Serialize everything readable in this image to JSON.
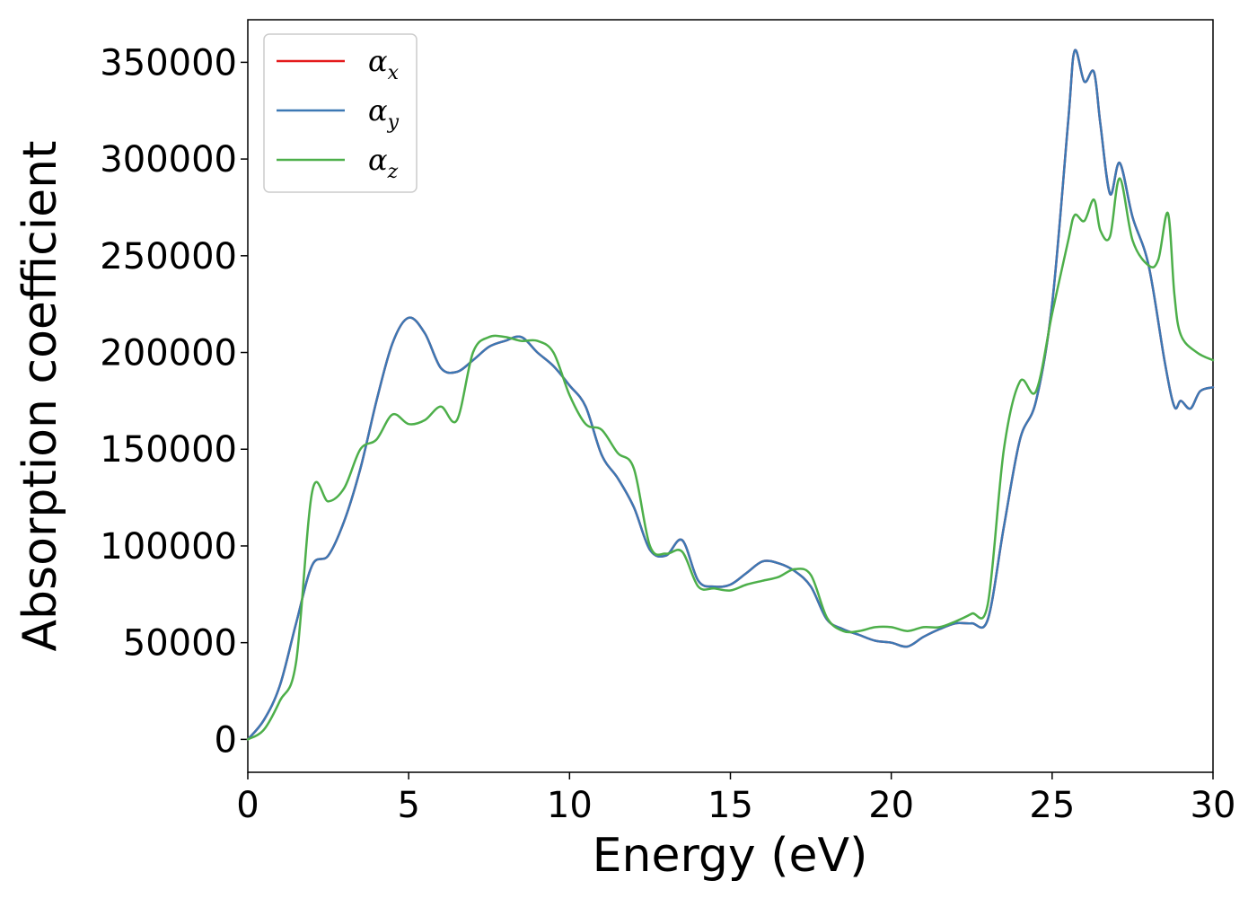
{
  "chart_data": {
    "type": "line",
    "title": "",
    "xlabel": "Energy (eV)",
    "ylabel": "Absorption coefficient",
    "xlim": [
      0,
      30
    ],
    "ylim": [
      -17000,
      372000
    ],
    "xticks": [
      0,
      5,
      10,
      15,
      20,
      25,
      30
    ],
    "xtick_labels": [
      "0",
      "5",
      "10",
      "15",
      "20",
      "25",
      "30"
    ],
    "yticks": [
      0,
      50000,
      100000,
      150000,
      200000,
      250000,
      300000,
      350000
    ],
    "ytick_labels": [
      "0",
      "50000",
      "100000",
      "150000",
      "200000",
      "250000",
      "300000",
      "350000"
    ],
    "grid": false,
    "legend_position": "top-left",
    "series": [
      {
        "name": "α",
        "subscript": "x",
        "color": "#e41a1c",
        "x": [
          0,
          0.5,
          1,
          1.5,
          2,
          2.5,
          3,
          3.5,
          4,
          4.5,
          5,
          5.5,
          6,
          6.5,
          7,
          7.5,
          8,
          8.5,
          9,
          9.5,
          10,
          10.5,
          11,
          11.5,
          12,
          12.5,
          13,
          13.5,
          14,
          14.5,
          15,
          15.5,
          16,
          16.5,
          17,
          17.5,
          18,
          18.5,
          19,
          19.5,
          20,
          20.5,
          21,
          21.5,
          22,
          22.5,
          23,
          23.5,
          24,
          24.5,
          25,
          25.5,
          25.7,
          26,
          26.3,
          26.5,
          26.8,
          27.1,
          27.5,
          28,
          28.5,
          28.8,
          29,
          29.3,
          29.6,
          30
        ],
        "y": [
          0,
          10000,
          28000,
          60000,
          90000,
          95000,
          113000,
          140000,
          175000,
          205000,
          218000,
          210000,
          192000,
          190000,
          196000,
          203000,
          206000,
          208000,
          200000,
          193000,
          183000,
          172000,
          147000,
          135000,
          120000,
          98000,
          95000,
          103000,
          82000,
          79000,
          80000,
          86000,
          92000,
          91000,
          87000,
          79000,
          62000,
          57000,
          54000,
          51000,
          50000,
          48000,
          53000,
          57000,
          60000,
          60000,
          62000,
          110000,
          155000,
          175000,
          225000,
          320000,
          356000,
          340000,
          345000,
          318000,
          282000,
          298000,
          270000,
          245000,
          195000,
          172000,
          175000,
          171000,
          180000,
          182000
        ]
      },
      {
        "name": "α",
        "subscript": "y",
        "color": "#3c78b4",
        "x": [
          0,
          0.5,
          1,
          1.5,
          2,
          2.5,
          3,
          3.5,
          4,
          4.5,
          5,
          5.5,
          6,
          6.5,
          7,
          7.5,
          8,
          8.5,
          9,
          9.5,
          10,
          10.5,
          11,
          11.5,
          12,
          12.5,
          13,
          13.5,
          14,
          14.5,
          15,
          15.5,
          16,
          16.5,
          17,
          17.5,
          18,
          18.5,
          19,
          19.5,
          20,
          20.5,
          21,
          21.5,
          22,
          22.5,
          23,
          23.5,
          24,
          24.5,
          25,
          25.5,
          25.7,
          26,
          26.3,
          26.5,
          26.8,
          27.1,
          27.5,
          28,
          28.5,
          28.8,
          29,
          29.3,
          29.6,
          30
        ],
        "y": [
          0,
          10000,
          28000,
          60000,
          90000,
          95000,
          113000,
          140000,
          175000,
          205000,
          218000,
          210000,
          192000,
          190000,
          196000,
          203000,
          206000,
          208000,
          200000,
          193000,
          183000,
          172000,
          147000,
          135000,
          120000,
          98000,
          95000,
          103000,
          82000,
          79000,
          80000,
          86000,
          92000,
          91000,
          87000,
          79000,
          62000,
          57000,
          54000,
          51000,
          50000,
          48000,
          53000,
          57000,
          60000,
          60000,
          62000,
          110000,
          155000,
          175000,
          225000,
          320000,
          356000,
          340000,
          345000,
          318000,
          282000,
          298000,
          270000,
          245000,
          195000,
          172000,
          175000,
          171000,
          180000,
          182000
        ]
      },
      {
        "name": "α",
        "subscript": "z",
        "color": "#4daf4a",
        "x": [
          0,
          0.5,
          1,
          1.5,
          2,
          2.5,
          3,
          3.5,
          4,
          4.5,
          5,
          5.5,
          6,
          6.5,
          7,
          7.5,
          8,
          8.5,
          9,
          9.5,
          10,
          10.5,
          11,
          11.5,
          12,
          12.5,
          13,
          13.5,
          14,
          14.5,
          15,
          15.5,
          16,
          16.5,
          17,
          17.5,
          18,
          18.5,
          19,
          19.5,
          20,
          20.5,
          21,
          21.5,
          22,
          22.5,
          23,
          23.5,
          24,
          24.5,
          25,
          25.5,
          25.7,
          26,
          26.3,
          26.5,
          26.8,
          27.1,
          27.5,
          28,
          28.3,
          28.6,
          28.8,
          29,
          29.5,
          30
        ],
        "y": [
          0,
          5000,
          20000,
          40000,
          128000,
          123000,
          130000,
          150000,
          155000,
          168000,
          163000,
          165000,
          172000,
          165000,
          200000,
          208000,
          208000,
          206000,
          206000,
          200000,
          178000,
          163000,
          160000,
          148000,
          140000,
          100000,
          96000,
          97000,
          79000,
          78000,
          77000,
          80000,
          82000,
          84000,
          88000,
          85000,
          63000,
          56000,
          56000,
          58000,
          58000,
          56000,
          58000,
          58000,
          61000,
          65000,
          70000,
          150000,
          185000,
          180000,
          220000,
          258000,
          271000,
          268000,
          279000,
          263000,
          260000,
          290000,
          258000,
          245000,
          248000,
          272000,
          230000,
          209000,
          200000,
          196000
        ]
      }
    ]
  }
}
